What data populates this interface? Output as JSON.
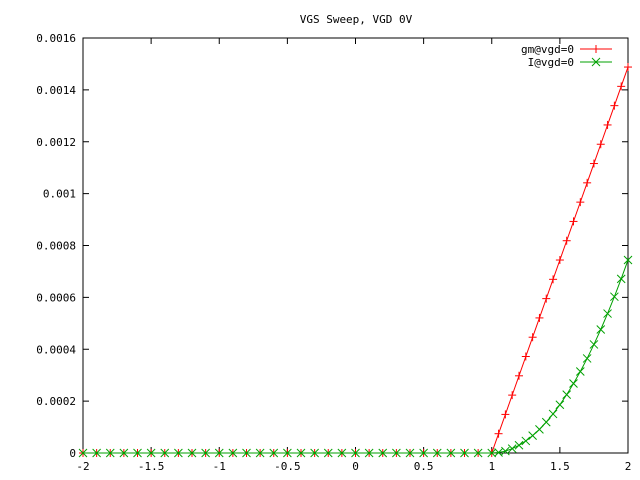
{
  "chart_data": {
    "type": "line",
    "title": "VGS Sweep, VGD 0V",
    "xlabel": "",
    "ylabel": "",
    "xlim": [
      -2,
      2
    ],
    "ylim": [
      0,
      0.0016
    ],
    "x_ticks": [
      -2,
      -1.5,
      -1,
      -0.5,
      0,
      0.5,
      1,
      1.5,
      2
    ],
    "x_tick_labels": [
      "-2",
      "-1.5",
      "-1",
      "-0.5",
      "0",
      "0.5",
      "1",
      "1.5",
      "2"
    ],
    "y_ticks": [
      0,
      0.0002,
      0.0004,
      0.0006,
      0.0008,
      0.001,
      0.0012,
      0.0014,
      0.0016
    ],
    "y_tick_labels": [
      "0",
      "0.0002",
      "0.0004",
      "0.0006",
      "0.0008",
      "0.001",
      "0.0012",
      "0.0014",
      "0.0016"
    ],
    "grid": false,
    "legend_position": "top-right",
    "x": [
      -2,
      -1.9,
      -1.8,
      -1.7,
      -1.6,
      -1.5,
      -1.4,
      -1.3,
      -1.2,
      -1.1,
      -1,
      -0.9,
      -0.8,
      -0.7,
      -0.6,
      -0.5,
      -0.4,
      -0.3,
      -0.2,
      -0.1,
      0,
      0.1,
      0.2,
      0.3,
      0.4,
      0.5,
      0.6,
      0.7,
      0.8,
      0.9,
      1,
      1.05,
      1.1,
      1.15,
      1.2,
      1.25,
      1.3,
      1.35,
      1.4,
      1.45,
      1.5,
      1.55,
      1.6,
      1.65,
      1.7,
      1.75,
      1.8,
      1.85,
      1.9,
      1.95,
      2
    ],
    "series": [
      {
        "name": "gm@vgd=0",
        "color": "#ff0000",
        "marker": "plus",
        "values": [
          0,
          0,
          0,
          0,
          0,
          0,
          0,
          0,
          0,
          0,
          0,
          0,
          0,
          0,
          0,
          0,
          0,
          0,
          0,
          0,
          0,
          0,
          0,
          0,
          0,
          0,
          0,
          0,
          0,
          0,
          0,
          7.44e-05,
          0.0001488,
          0.0002232,
          0.0002976,
          0.000372,
          0.0004464,
          0.0005208,
          0.0005952,
          0.0006696,
          0.000744,
          0.0008184,
          0.0008928,
          0.0009672,
          0.0010416,
          0.001116,
          0.0011904,
          0.0012648,
          0.0013392,
          0.0014136,
          0.001488
        ]
      },
      {
        "name": "I@vgd=0",
        "color": "#00a000",
        "marker": "cross",
        "values": [
          0,
          0,
          0,
          0,
          0,
          0,
          0,
          0,
          0,
          0,
          0,
          0,
          0,
          0,
          0,
          0,
          0,
          0,
          0,
          0,
          0,
          0,
          0,
          0,
          0,
          0,
          0,
          0,
          0,
          0,
          0,
          1.86e-06,
          7.44e-06,
          1.674e-05,
          2.976e-05,
          4.65e-05,
          6.696e-05,
          9.114e-05,
          0.00011904,
          0.00015066,
          0.000186,
          0.00022506,
          0.00026784,
          0.00031434,
          0.00036456,
          0.0004185,
          0.00047616,
          0.00053754,
          0.00060264,
          0.00067146,
          0.000744
        ]
      }
    ]
  }
}
